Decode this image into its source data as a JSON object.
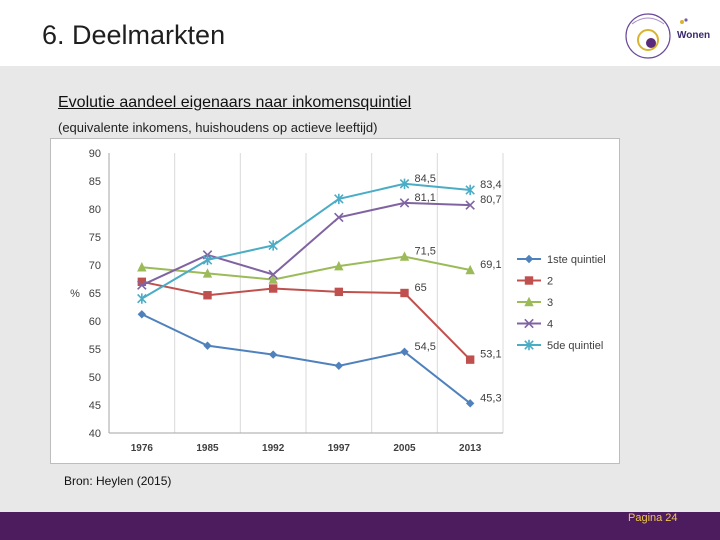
{
  "slide": {
    "title": "6. Deelmarkten",
    "logo_text": "Wonen",
    "page_label": "Pagina 24"
  },
  "chart": {
    "heading": "Evolutie aandeel eigenaars naar inkomensquintiel",
    "subheading": "(equivalente inkomens, huishoudens op actieve leeftijd)",
    "source": "Bron: Heylen (2015)"
  },
  "chart_data": {
    "type": "line",
    "x": [
      "1976",
      "1985",
      "1992",
      "1997",
      "2005",
      "2013"
    ],
    "ylabel": "%",
    "ylim": [
      40,
      90
    ],
    "yticks": [
      40,
      45,
      50,
      55,
      60,
      65,
      70,
      75,
      80,
      85,
      90
    ],
    "grid": "vertical",
    "legend_position": "right",
    "series": [
      {
        "name": "1ste quintiel",
        "color": "#4f81bd",
        "marker": "diamond",
        "values": [
          61.2,
          55.6,
          54.0,
          52.0,
          54.5,
          45.3
        ],
        "labels": [
          null,
          null,
          null,
          null,
          "54,5",
          "45,3"
        ]
      },
      {
        "name": "2",
        "color": "#c0504d",
        "marker": "square",
        "values": [
          67.0,
          64.6,
          65.8,
          65.2,
          65.0,
          53.1
        ],
        "labels": [
          null,
          null,
          null,
          null,
          "65",
          "53,1"
        ]
      },
      {
        "name": "3",
        "color": "#9bbb59",
        "marker": "triangle",
        "values": [
          69.6,
          68.5,
          67.4,
          69.8,
          71.5,
          69.1
        ],
        "labels": [
          null,
          null,
          null,
          null,
          "71,5",
          "69,1"
        ]
      },
      {
        "name": "4",
        "color": "#8064a2",
        "marker": "x",
        "values": [
          66.4,
          71.8,
          68.3,
          78.5,
          81.1,
          80.7
        ],
        "labels": [
          null,
          null,
          null,
          null,
          "81,1",
          "80,7"
        ]
      },
      {
        "name": "5de quintiel",
        "color": "#4bacc6",
        "marker": "star",
        "values": [
          64.0,
          70.9,
          73.5,
          81.8,
          84.5,
          83.4
        ],
        "labels": [
          null,
          null,
          null,
          null,
          "84,5",
          "83,4"
        ]
      }
    ]
  }
}
